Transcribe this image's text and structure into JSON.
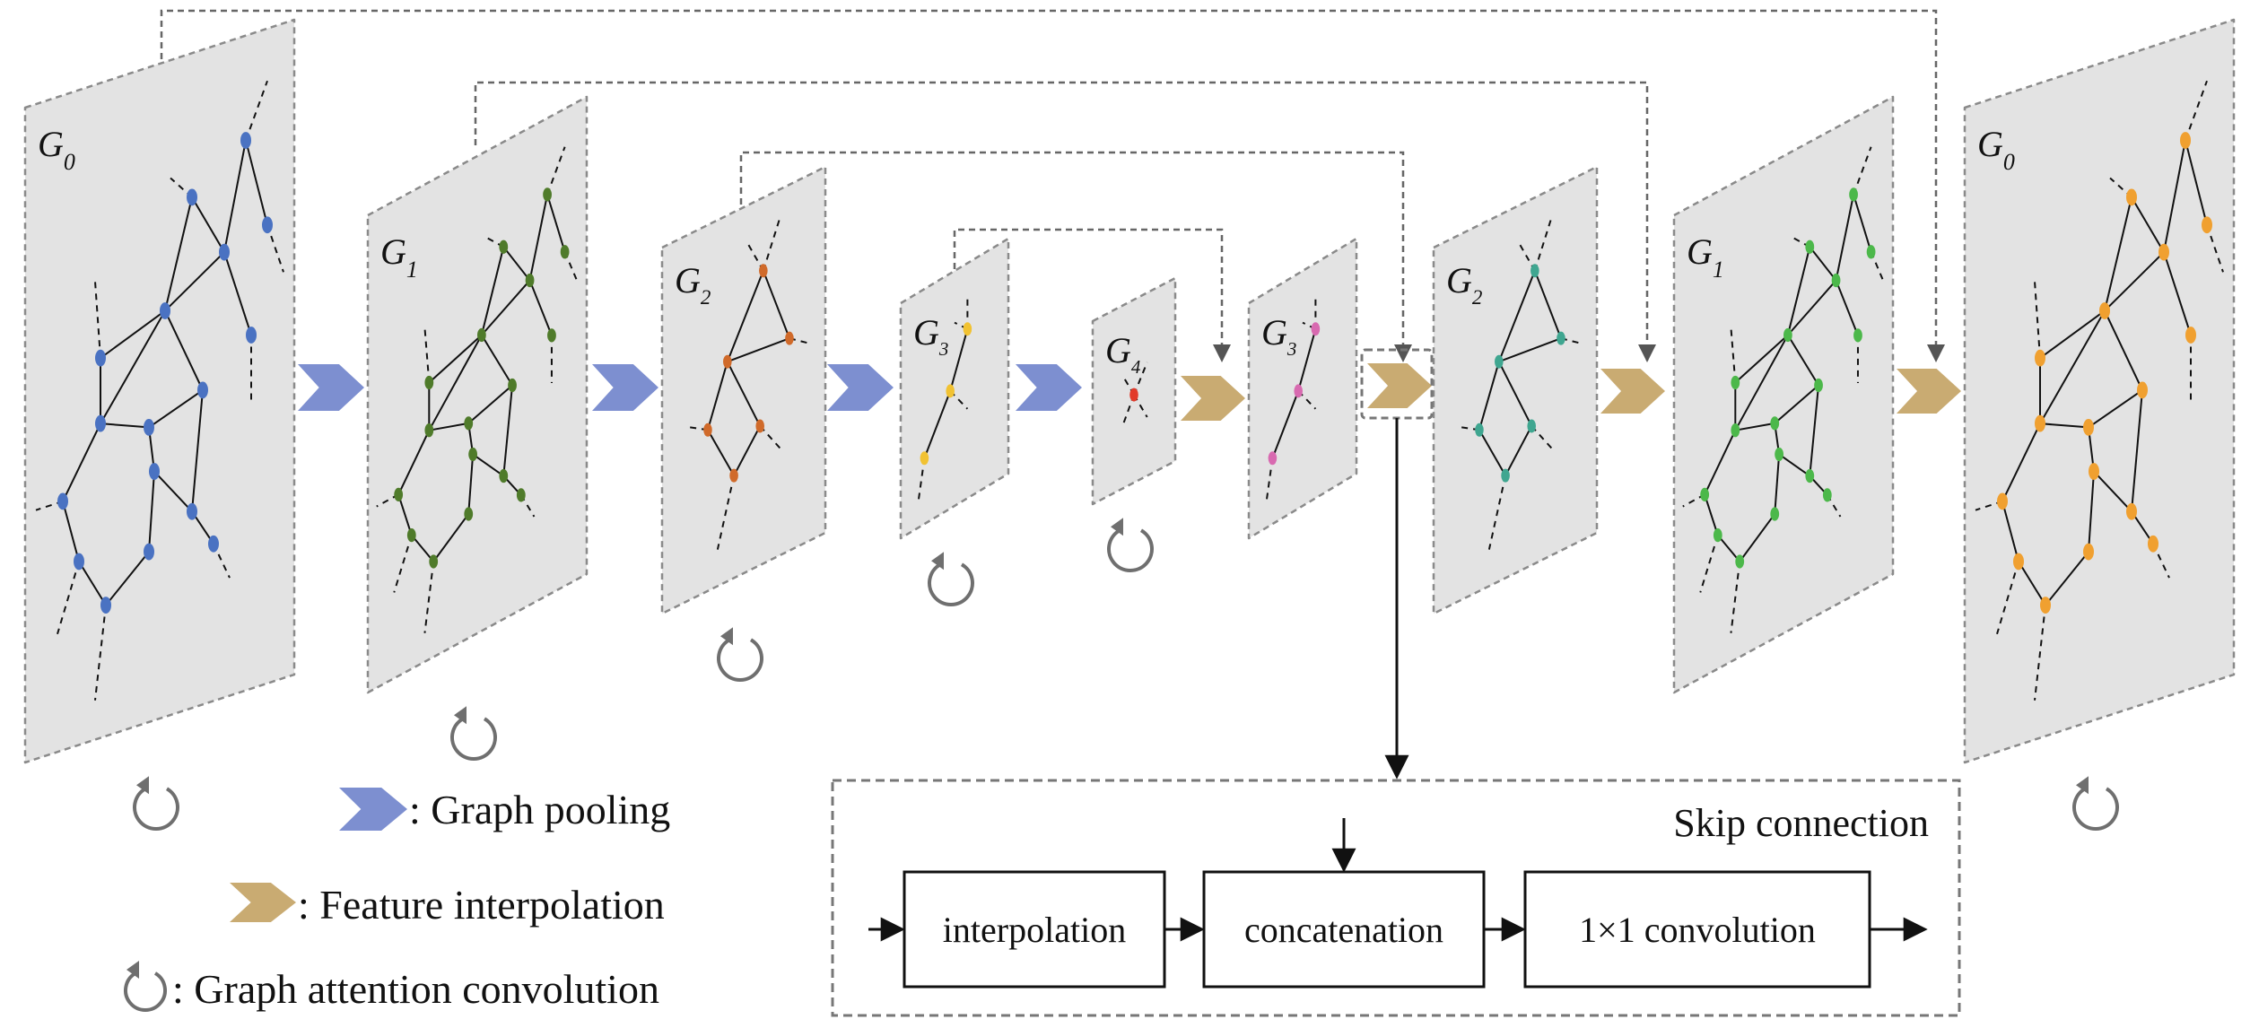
{
  "colors": {
    "pool_arrow": "#7d8fd0",
    "interp_arrow": "#c9ab72",
    "panel_fill": "#e3e3e3",
    "panel_border": "#8a8a8a",
    "edge": "#111111",
    "conv_icon": "#6f6f6f"
  },
  "panels": [
    {
      "label": "G",
      "sub": "0",
      "node_color": "#4a72c2",
      "nodes_icon": "blue-node-icon"
    },
    {
      "label": "G",
      "sub": "1",
      "node_color": "#4f7b2a",
      "nodes_icon": "green-node-icon"
    },
    {
      "label": "G",
      "sub": "2",
      "node_color": "#d06a2a",
      "nodes_icon": "orange-node-icon"
    },
    {
      "label": "G",
      "sub": "3",
      "node_color": "#f1c232",
      "nodes_icon": "yellow-node-icon"
    },
    {
      "label": "G",
      "sub": "4",
      "node_color": "#e23a2a",
      "nodes_icon": "red-node-icon"
    },
    {
      "label": "G",
      "sub": "3",
      "node_color": "#d86ab0",
      "nodes_icon": "pink-node-icon"
    },
    {
      "label": "G",
      "sub": "2",
      "node_color": "#3fa690",
      "nodes_icon": "teal-node-icon"
    },
    {
      "label": "G",
      "sub": "1",
      "node_color": "#4cb84a",
      "nodes_icon": "lightgreen-node-icon"
    },
    {
      "label": "G",
      "sub": "0",
      "node_color": "#f0a030",
      "nodes_icon": "amber-node-icon"
    }
  ],
  "legend": {
    "pooling": ": Graph pooling",
    "interpolation": ": Feature interpolation",
    "attention": ": Graph attention convolution"
  },
  "skip": {
    "title": "Skip connection",
    "box1": "interpolation",
    "box2": "concatenation",
    "box3": "1×1 convolution"
  }
}
